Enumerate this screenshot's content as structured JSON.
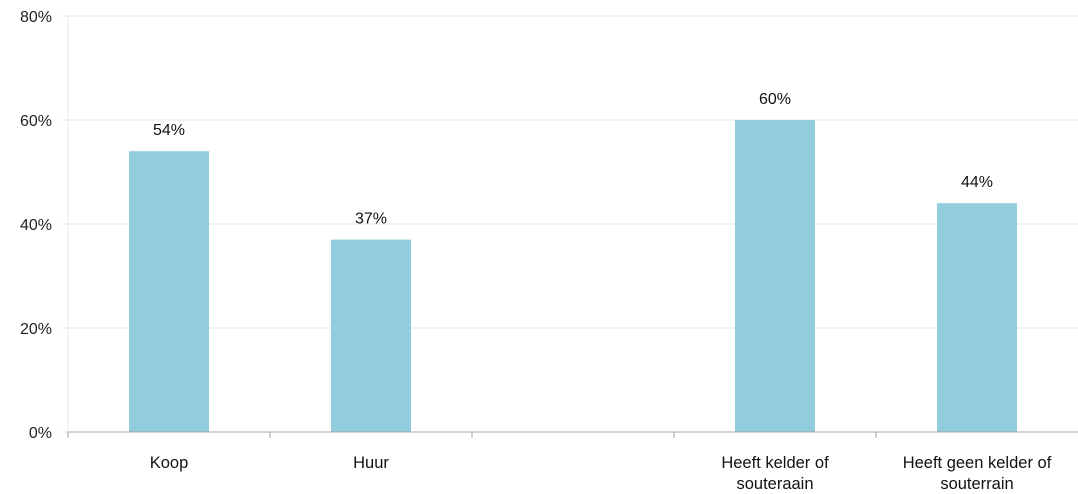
{
  "chart_data": {
    "type": "bar",
    "categories": [
      [
        "Koop"
      ],
      [
        "Huur"
      ],
      [
        ""
      ],
      [
        "Heeft kelder of",
        "souteraain"
      ],
      [
        "Heeft geen kelder of",
        "souterrain"
      ]
    ],
    "values": [
      54,
      37,
      null,
      60,
      44
    ],
    "data_labels": [
      "54%",
      "37%",
      "",
      "60%",
      "44%"
    ],
    "y_ticks": [
      "0%",
      "20%",
      "40%",
      "60%",
      "80%"
    ],
    "ylim": [
      0,
      80
    ],
    "grid": true,
    "colors": {
      "bar": "#92cddd",
      "grid": "#dfe9f1",
      "axis": "#a6a6a6"
    }
  }
}
